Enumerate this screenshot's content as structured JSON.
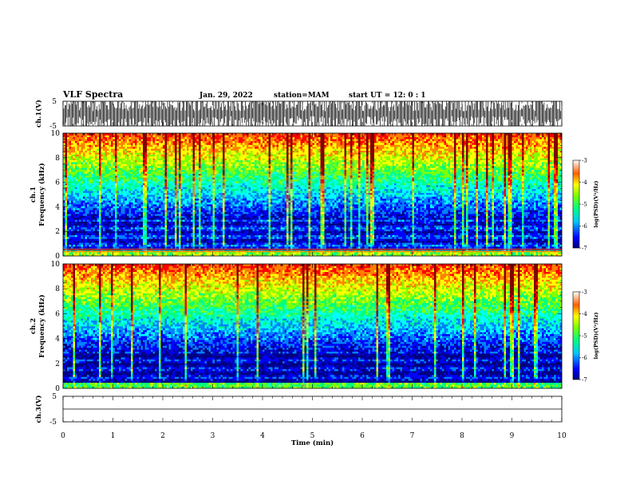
{
  "header": {
    "title": "VLF Spectra",
    "date": "Jan. 29, 2022",
    "station": "station=MAM",
    "start": "start  UT =   12: 0  : 1"
  },
  "chart_data": {
    "type": "heatmap",
    "x_axis": {
      "label": "Time  (min)",
      "range": [
        0,
        10
      ],
      "ticks": [
        "0",
        "1",
        "2",
        "3",
        "4",
        "5",
        "6",
        "7",
        "8",
        "9",
        "10"
      ]
    },
    "panels": [
      {
        "name": "ch1-waveform",
        "type": "line",
        "ylabel": "ch.1(V)",
        "ylim": [
          -5,
          5
        ],
        "ticks": [
          "5",
          "-5"
        ],
        "description_level": 3.5
      },
      {
        "name": "ch1-spectrogram",
        "type": "heatmap",
        "ylabel_top": "ch.1",
        "ylabel": "Frequency  (kHz)",
        "ylim": [
          0,
          10
        ],
        "ticks": [
          "0",
          "2",
          "4",
          "6",
          "8",
          "10"
        ],
        "colorbar": {
          "label": "log(PSD)(V²/Hz)",
          "range": [
            -7,
            -3
          ],
          "ticks": [
            "-3",
            "-4",
            "-5",
            "-6",
            "-7"
          ]
        }
      },
      {
        "name": "ch2-spectrogram",
        "type": "heatmap",
        "ylabel_top": "ch.2",
        "ylabel": "Frequency  (kHz)",
        "ylim": [
          0,
          10
        ],
        "ticks": [
          "0",
          "2",
          "4",
          "6",
          "8",
          "10"
        ],
        "colorbar": {
          "label": "log(PSD)(V²/Hz)",
          "range": [
            -7,
            -3
          ],
          "ticks": [
            "-3",
            "-4",
            "-5",
            "-6",
            "-7"
          ]
        }
      },
      {
        "name": "ch3-waveform",
        "type": "line",
        "ylabel": "ch.3(V)",
        "ylim": [
          -5,
          5
        ],
        "ticks": [
          "5",
          "-5"
        ],
        "value": 0
      }
    ]
  },
  "colors": {
    "psd_scale": [
      "#000080",
      "#0000ff",
      "#0080ff",
      "#00ffff",
      "#00ff80",
      "#80ff00",
      "#ffff00",
      "#ff8000",
      "#ff0000",
      "#800000"
    ]
  }
}
